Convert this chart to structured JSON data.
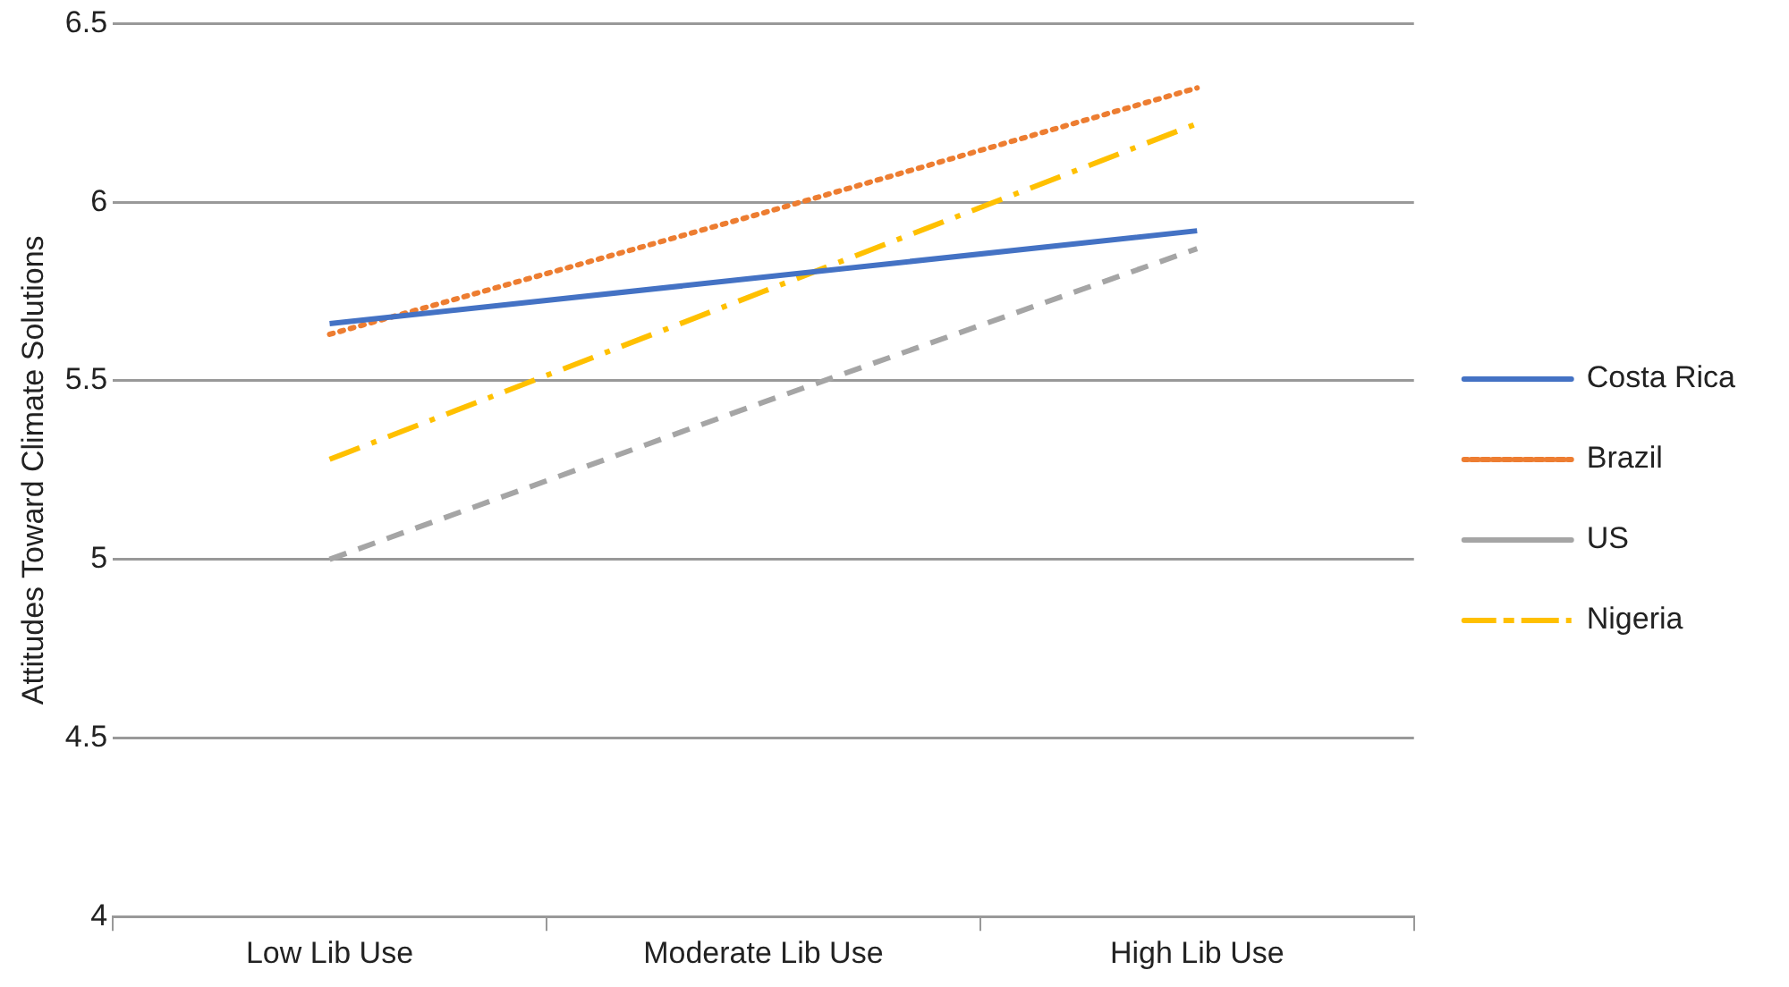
{
  "chart_data": {
    "type": "line",
    "ylabel": "Attitudes Toward Climate Solutions",
    "categories": [
      "Low Lib Use",
      "Moderate Lib Use",
      "High Lib Use"
    ],
    "series": [
      {
        "name": "Costa Rica",
        "color": "#4472c4",
        "line_style": "solid",
        "values": [
          5.66,
          5.79,
          5.92
        ]
      },
      {
        "name": "Brazil",
        "color": "#ed7d31",
        "line_style": "dotted",
        "values": [
          5.63,
          5.97,
          6.32
        ]
      },
      {
        "name": "US",
        "color": "#a5a5a5",
        "line_style": "dashed",
        "values": [
          5.0,
          5.44,
          5.87
        ]
      },
      {
        "name": "Nigeria",
        "color": "#ffc000",
        "line_style": "dashdot",
        "values": [
          5.28,
          5.75,
          6.22
        ]
      }
    ],
    "ylim": [
      4,
      6.5
    ],
    "yticks": [
      4,
      4.5,
      5,
      5.5,
      6,
      6.5
    ],
    "grid": "y",
    "legend": "right",
    "marker": "none"
  }
}
